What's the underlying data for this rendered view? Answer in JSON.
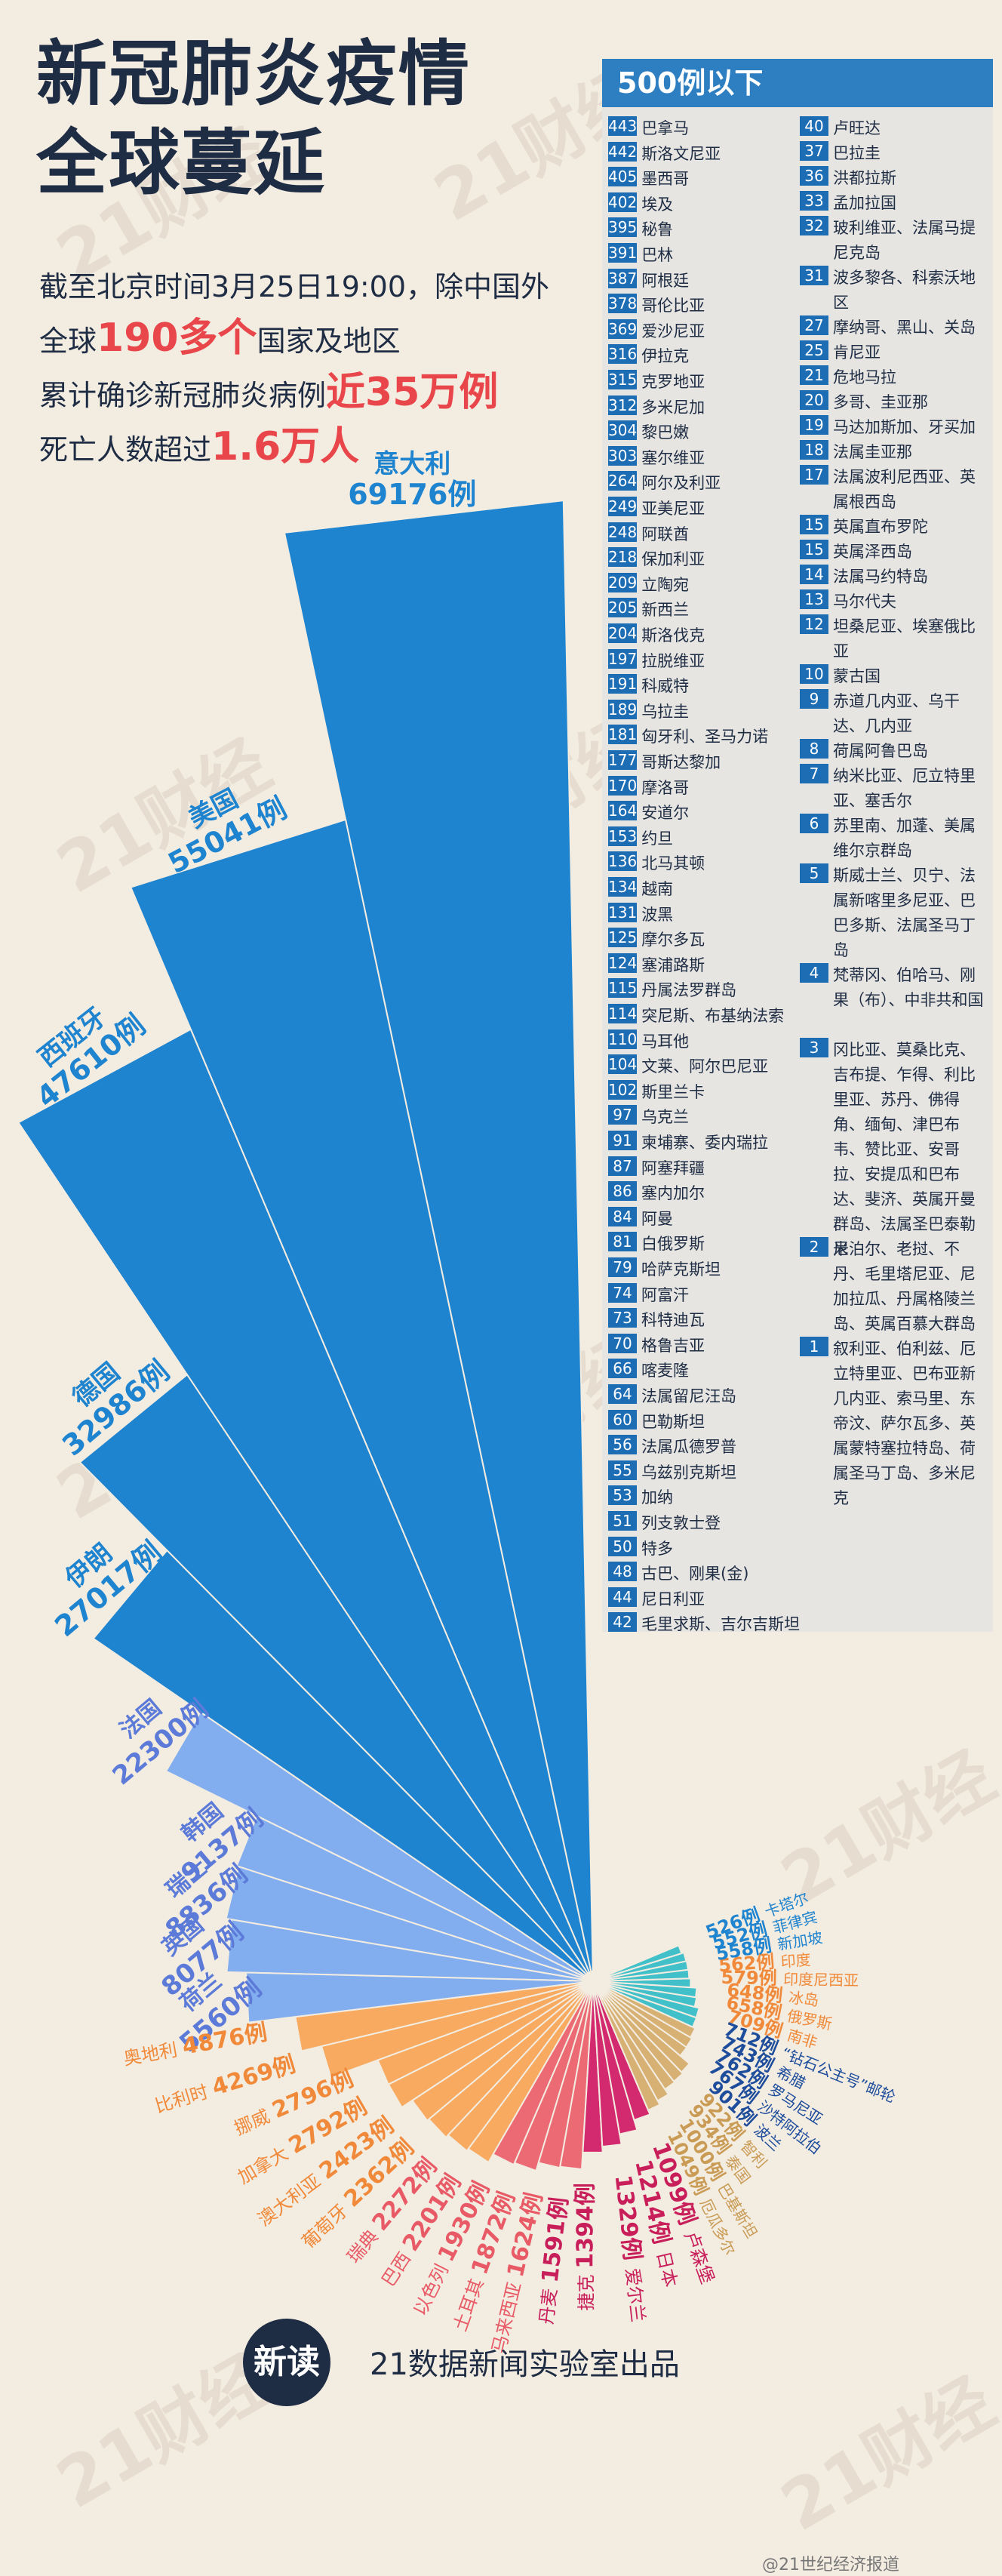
{
  "title_lines": [
    "新冠肺炎疫情",
    "全球蔓延"
  ],
  "intro": {
    "line1": "截至北京时间3月25日19:00，除中国外",
    "line2_pre": "全球",
    "line2_big": "190多个",
    "line2_post": "国家及地区",
    "line3_pre": "累计确诊新冠肺炎病例",
    "line3_big": "近35万例",
    "line4_pre": "死亡人数超过",
    "line4_big": "1.6万人"
  },
  "panel": {
    "heading": "500例以下",
    "left_col": [
      {
        "n": "443",
        "names": "巴拿马"
      },
      {
        "n": "442",
        "names": "斯洛文尼亚"
      },
      {
        "n": "405",
        "names": "墨西哥"
      },
      {
        "n": "402",
        "names": "埃及"
      },
      {
        "n": "395",
        "names": "秘鲁"
      },
      {
        "n": "391",
        "names": "巴林"
      },
      {
        "n": "387",
        "names": "阿根廷"
      },
      {
        "n": "378",
        "names": "哥伦比亚"
      },
      {
        "n": "369",
        "names": "爱沙尼亚"
      },
      {
        "n": "316",
        "names": "伊拉克"
      },
      {
        "n": "315",
        "names": "克罗地亚"
      },
      {
        "n": "312",
        "names": "多米尼加"
      },
      {
        "n": "304",
        "names": "黎巴嫩"
      },
      {
        "n": "303",
        "names": "塞尔维亚"
      },
      {
        "n": "264",
        "names": "阿尔及利亚"
      },
      {
        "n": "249",
        "names": "亚美尼亚"
      },
      {
        "n": "248",
        "names": "阿联酋"
      },
      {
        "n": "218",
        "names": "保加利亚"
      },
      {
        "n": "209",
        "names": "立陶宛"
      },
      {
        "n": "205",
        "names": "新西兰"
      },
      {
        "n": "204",
        "names": "斯洛伐克"
      },
      {
        "n": "197",
        "names": "拉脱维亚"
      },
      {
        "n": "191",
        "names": "科威特"
      },
      {
        "n": "189",
        "names": "乌拉圭"
      },
      {
        "n": "181",
        "names": "匈牙利、圣马力诺"
      },
      {
        "n": "177",
        "names": "哥斯达黎加"
      },
      {
        "n": "170",
        "names": "摩洛哥"
      },
      {
        "n": "164",
        "names": "安道尔"
      },
      {
        "n": "153",
        "names": "约旦"
      },
      {
        "n": "136",
        "names": "北马其顿"
      },
      {
        "n": "134",
        "names": "越南"
      },
      {
        "n": "131",
        "names": "波黑"
      },
      {
        "n": "125",
        "names": "摩尔多瓦"
      },
      {
        "n": "124",
        "names": "塞浦路斯"
      },
      {
        "n": "115",
        "names": "丹属法罗群岛"
      },
      {
        "n": "114",
        "names": "突尼斯、布基纳法索"
      },
      {
        "n": "110",
        "names": "马耳他"
      },
      {
        "n": "104",
        "names": "文莱、阿尔巴尼亚"
      },
      {
        "n": "102",
        "names": "斯里兰卡"
      },
      {
        "n": "97",
        "names": "乌克兰"
      },
      {
        "n": "91",
        "names": "柬埔寨、委内瑞拉"
      },
      {
        "n": "87",
        "names": "阿塞拜疆"
      },
      {
        "n": "86",
        "names": "塞内加尔"
      },
      {
        "n": "84",
        "names": "阿曼"
      },
      {
        "n": "81",
        "names": "白俄罗斯"
      },
      {
        "n": "79",
        "names": "哈萨克斯坦"
      },
      {
        "n": "74",
        "names": "阿富汗"
      },
      {
        "n": "73",
        "names": "科特迪瓦"
      },
      {
        "n": "70",
        "names": "格鲁吉亚"
      },
      {
        "n": "66",
        "names": "喀麦隆"
      },
      {
        "n": "64",
        "names": "法属留尼汪岛"
      },
      {
        "n": "60",
        "names": "巴勒斯坦"
      },
      {
        "n": "56",
        "names": "法属瓜德罗普"
      },
      {
        "n": "55",
        "names": "乌兹别克斯坦"
      },
      {
        "n": "53",
        "names": "加纳"
      },
      {
        "n": "51",
        "names": "列支敦士登"
      },
      {
        "n": "50",
        "names": "特多"
      },
      {
        "n": "48",
        "names": "古巴、刚果(金)"
      },
      {
        "n": "44",
        "names": "尼日利亚"
      },
      {
        "n": "42",
        "names": "毛里求斯、吉尔吉斯坦"
      }
    ],
    "right_col": [
      {
        "n": "40",
        "names": "卢旺达"
      },
      {
        "n": "37",
        "names": "巴拉圭"
      },
      {
        "n": "36",
        "names": "洪都拉斯"
      },
      {
        "n": "33",
        "names": "孟加拉国"
      },
      {
        "n": "32",
        "names": "玻利维亚、法属马提尼克岛"
      },
      {
        "n": "31",
        "names": "波多黎各、科索沃地区"
      },
      {
        "n": "27",
        "names": "摩纳哥、黑山、关岛"
      },
      {
        "n": "25",
        "names": "肯尼亚"
      },
      {
        "n": "21",
        "names": "危地马拉"
      },
      {
        "n": "20",
        "names": "多哥、圭亚那"
      },
      {
        "n": "19",
        "names": "马达加斯加、牙买加"
      },
      {
        "n": "18",
        "names": "法属圭亚那"
      },
      {
        "n": "17",
        "names": "法属波利尼西亚、英属根西岛"
      },
      {
        "n": "15",
        "names": "英属直布罗陀"
      },
      {
        "n": "15",
        "names": "英属泽西岛"
      },
      {
        "n": "14",
        "names": "法属马约特岛"
      },
      {
        "n": "13",
        "names": "马尔代夫"
      },
      {
        "n": "12",
        "names": "坦桑尼亚、埃塞俄比亚"
      },
      {
        "n": "10",
        "names": "蒙古国"
      },
      {
        "n": "9",
        "names": "赤道几内亚、乌干达、几内亚"
      },
      {
        "n": "8",
        "names": "荷属阿鲁巴岛"
      },
      {
        "n": "7",
        "names": "纳米比亚、厄立特里亚、塞舌尔"
      },
      {
        "n": "6",
        "names": "苏里南、加蓬、美属维尔京群岛"
      },
      {
        "n": "5",
        "names": "斯威士兰、贝宁、法属新喀里多尼亚、巴巴多斯、法属圣马丁岛"
      },
      {
        "n": "4",
        "names": "梵蒂冈、伯哈马、刚果（布）、中非共和国"
      },
      {
        "n": "3",
        "names": "冈比亚、莫桑比克、吉布提、乍得、利比里亚、苏丹、佛得角、缅甸、津巴布韦、赞比亚、安哥拉、安提瓜和巴布达、斐济、英属开曼群岛、法属圣巴泰勒米"
      },
      {
        "n": "2",
        "names": "尼泊尔、老挝、不丹、毛里塔尼亚、尼加拉瓜、丹属格陵兰岛、英属百慕大群岛"
      },
      {
        "n": "1",
        "names": "叙利亚、伯利兹、厄立特里亚、巴布亚新几内亚、索马里、东帝汶、萨尔瓦多、英属蒙特塞拉特岛、荷属圣马丁岛、多米尼克"
      }
    ]
  },
  "chart_data": {
    "type": "bar",
    "title": "新冠肺炎疫情全球蔓延",
    "unit": "例",
    "categories": [
      "意大利",
      "美国",
      "西班牙",
      "德国",
      "伊朗",
      "法国",
      "韩国",
      "瑞士",
      "英国",
      "荷兰",
      "奥地利",
      "比利时",
      "挪威",
      "加拿大",
      "澳大利亚",
      "葡萄牙",
      "瑞典",
      "巴西",
      "以色列",
      "土耳其",
      "马来西亚",
      "丹麦",
      "捷克",
      "爱尔兰",
      "日本",
      "卢森堡",
      "厄瓜多尔",
      "巴基斯坦",
      "泰国",
      "智利",
      "波兰",
      "沙特阿拉伯",
      "罗马尼亚",
      "希腊",
      "“钻石公主号”邮轮",
      "南非",
      "俄罗斯",
      "冰岛",
      "印度尼西亚",
      "印度",
      "新加坡",
      "菲律宾",
      "卡塔尔"
    ],
    "values": [
      69176,
      55041,
      47610,
      32986,
      27017,
      22300,
      9137,
      8836,
      8077,
      5560,
      4876,
      4269,
      2796,
      2792,
      2423,
      2362,
      2272,
      2201,
      1930,
      1872,
      1624,
      1591,
      1394,
      1329,
      1214,
      1099,
      1049,
      1000,
      934,
      922,
      901,
      767,
      762,
      743,
      712,
      709,
      658,
      648,
      579,
      562,
      558,
      552,
      526
    ],
    "value_labels": [
      "69176例",
      "55041例",
      "47610例",
      "32986例",
      "27017例",
      "22300例",
      "9137例",
      "8836例",
      "8077例",
      "5560例",
      "4876例",
      "4269例",
      "2796例",
      "2792例",
      "2423例",
      "2362例",
      "2272例",
      "2201例",
      "1930例",
      "1872例",
      "1624例",
      "1591例",
      "1394例",
      "1329例",
      "1214例",
      "1099例",
      "1049例",
      "1000例",
      "934例",
      "922例",
      "901例",
      "767例",
      "762例",
      "743例",
      "712例",
      "709例",
      "658例",
      "648例",
      "579例",
      "562例",
      "558例",
      "552例",
      "526例"
    ],
    "colors": {
      "tier_blue": "#1f84cf",
      "tier_light_blue": "#82aef0",
      "tier_orange": "#f7aa60",
      "tier_red": "#eb6a74",
      "tier_magenta": "#d3296e",
      "tier_gold": "#d7b174",
      "tier_teal": "#41c0c9",
      "label_blue": "#1f84cf",
      "label_periwinkle": "#5c7bd8",
      "label_orange": "#f08a3a",
      "label_red": "#e85a66",
      "label_magenta": "#c81e5a",
      "label_gold": "#c99b55",
      "label_navy": "#1e4d9c"
    }
  },
  "footer": {
    "logo": "新读",
    "text": "21数据新闻实验室出品",
    "weibo": "@21世纪经济报道"
  },
  "watermark": "21财经"
}
